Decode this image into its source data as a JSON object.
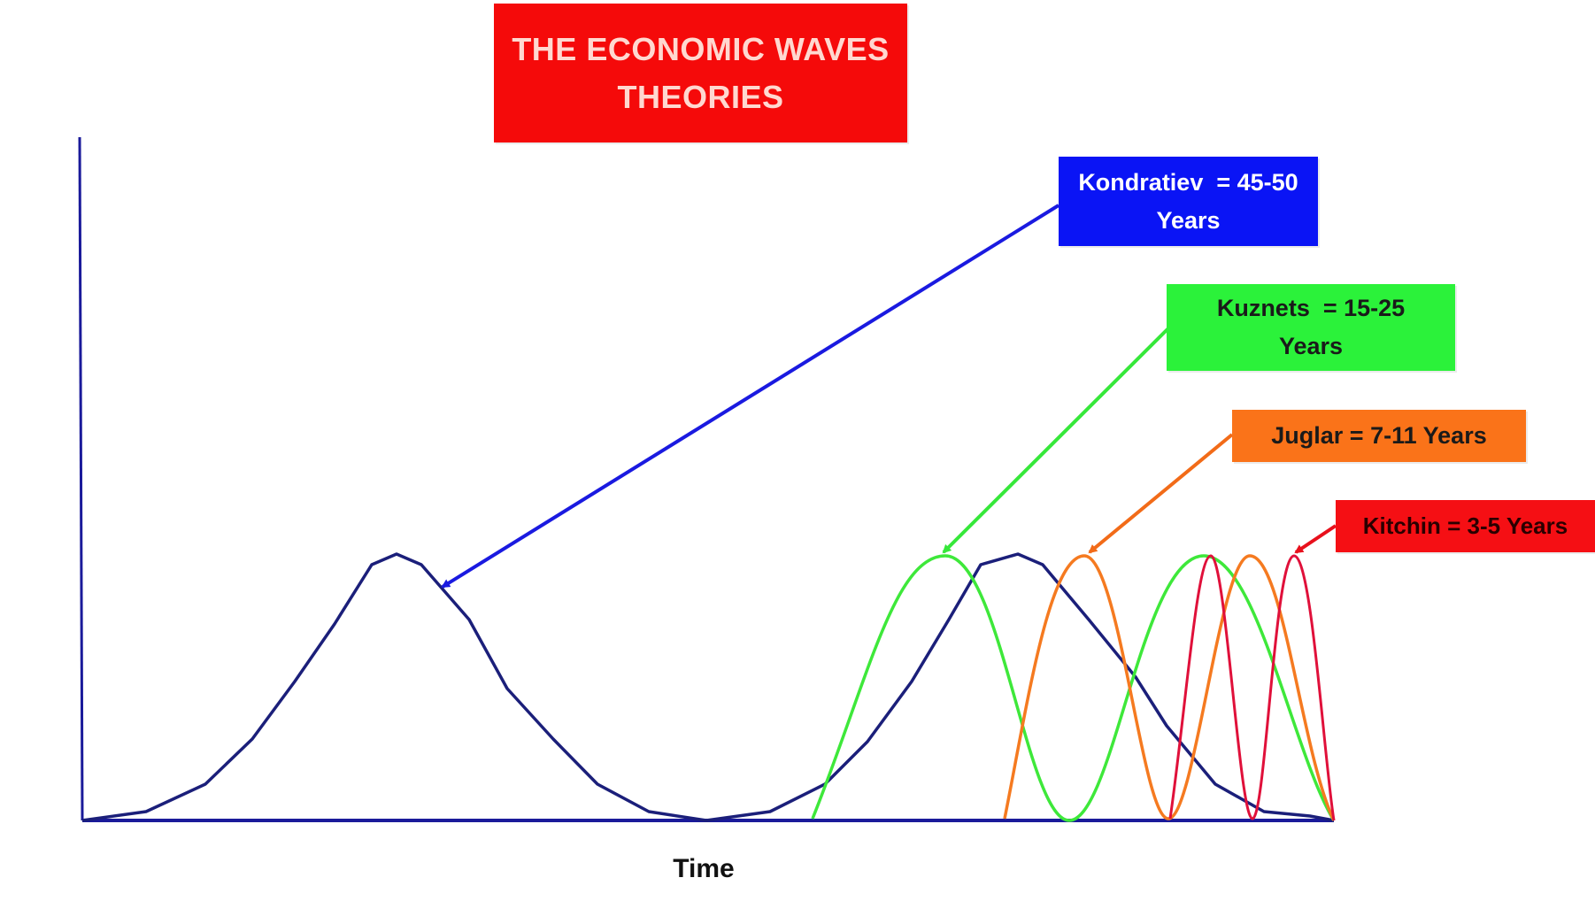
{
  "title": {
    "line1": "THE ECONOMIC WAVES",
    "line2": "THEORIES"
  },
  "x_axis": {
    "label": "Time"
  },
  "cycles": {
    "kondratiev": {
      "line1": "Kondratiev  = 45-50",
      "line2": "Years",
      "box_color": "#0a14f5",
      "arrow_color": "#1a1ae0",
      "curve_color": "#1b1f7a"
    },
    "kuznets": {
      "line1": "Kuznets  = 15-25",
      "line2": "Years",
      "box_color": "#2bf23a",
      "arrow_color": "#36e83a",
      "curve_color": "#3ee83a"
    },
    "juglar": {
      "label": "Juglar = 7-11 Years",
      "box_color": "#fa7319",
      "arrow_color": "#f26b18",
      "curve_color": "#f57a20"
    },
    "kitchin": {
      "label": "Kitchin = 3-5 Years",
      "box_color": "#f50f14",
      "arrow_color": "#e8101c",
      "curve_color": "#e0103a"
    }
  },
  "title_box_color": "#f50a0a",
  "axis_color": "#1a1a9a"
}
